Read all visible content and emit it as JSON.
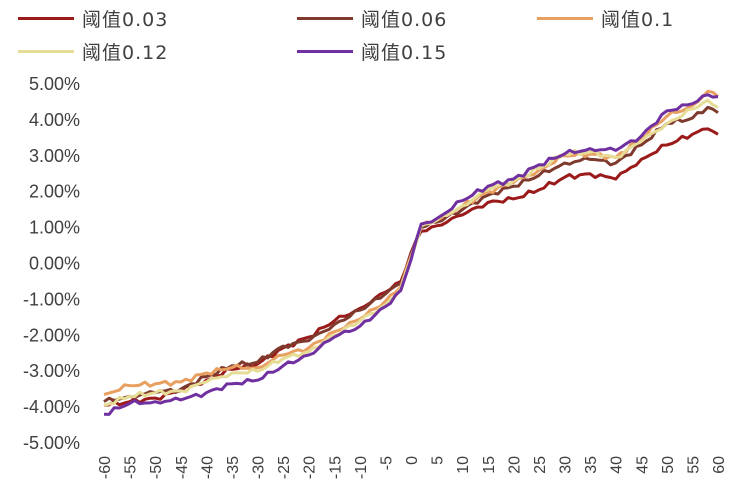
{
  "chart_data": {
    "type": "line",
    "title": "",
    "xlabel": "",
    "ylabel": "",
    "xlim": [
      -60,
      60
    ],
    "ylim": [
      -5,
      5
    ],
    "x_ticks": [
      -60,
      -55,
      -50,
      -45,
      -40,
      -35,
      -30,
      -25,
      -20,
      -15,
      -10,
      -5,
      0,
      5,
      10,
      15,
      20,
      25,
      30,
      35,
      40,
      45,
      50,
      55,
      60
    ],
    "x_tick_labels": [
      "-60",
      "-55",
      "-50",
      "-45",
      "-40",
      "-35",
      "-30",
      "-25",
      "-20",
      "-15",
      "-10",
      "-5",
      "0",
      "5",
      "10",
      "15",
      "20",
      "25",
      "30",
      "35",
      "40",
      "45",
      "50",
      "55",
      "60"
    ],
    "y_ticks": [
      5,
      4,
      3,
      2,
      1,
      0,
      -1,
      -2,
      -3,
      -4,
      -5
    ],
    "y_tick_labels": [
      "5.00%",
      "4.00%",
      "3.00%",
      "2.00%",
      "1.00%",
      "0.00%",
      "-1.00%",
      "-2.00%",
      "-3.00%",
      "-4.00%",
      "-5.00%"
    ],
    "grid": false,
    "legend_position": "top",
    "x": [
      -60,
      -55,
      -50,
      -45,
      -40,
      -35,
      -30,
      -25,
      -20,
      -15,
      -10,
      -5,
      -2,
      0,
      2,
      5,
      10,
      15,
      20,
      25,
      30,
      35,
      40,
      45,
      50,
      55,
      58,
      60
    ],
    "series": [
      {
        "name": "阈值0.03",
        "color": "#9b1b1b",
        "values": [
          -3.95,
          -3.85,
          -3.75,
          -3.55,
          -3.25,
          -2.95,
          -2.8,
          -2.35,
          -2.05,
          -1.6,
          -1.25,
          -0.8,
          -0.5,
          0.3,
          0.9,
          1.05,
          1.35,
          1.7,
          1.8,
          2.05,
          2.4,
          2.5,
          2.35,
          2.9,
          3.3,
          3.6,
          3.75,
          3.6
        ]
      },
      {
        "name": "阈值0.06",
        "color": "#7f3a2e",
        "values": [
          -3.85,
          -3.7,
          -3.6,
          -3.5,
          -3.15,
          -2.85,
          -2.75,
          -2.3,
          -2.15,
          -1.7,
          -1.3,
          -0.85,
          -0.55,
          0.25,
          1.0,
          1.15,
          1.5,
          1.9,
          2.15,
          2.45,
          2.8,
          2.9,
          2.8,
          3.3,
          3.9,
          4.05,
          4.35,
          4.2
        ]
      },
      {
        "name": "阈值0.1",
        "color": "#e8a060",
        "values": [
          -3.65,
          -3.4,
          -3.35,
          -3.3,
          -3.05,
          -2.9,
          -2.9,
          -2.55,
          -2.35,
          -1.9,
          -1.55,
          -1.05,
          -0.65,
          0.2,
          1.05,
          1.2,
          1.6,
          2.0,
          2.25,
          2.6,
          3.0,
          3.05,
          2.95,
          3.5,
          4.1,
          4.4,
          4.8,
          4.65
        ]
      },
      {
        "name": "阈值0.12",
        "color": "#e6dc96",
        "values": [
          -3.95,
          -3.7,
          -3.6,
          -3.55,
          -3.3,
          -3.05,
          -3.0,
          -2.65,
          -2.45,
          -2.0,
          -1.6,
          -1.15,
          -0.7,
          0.15,
          1.05,
          1.2,
          1.6,
          2.05,
          2.3,
          2.65,
          3.05,
          3.1,
          2.95,
          3.4,
          3.9,
          4.3,
          4.55,
          4.35
        ]
      },
      {
        "name": "阈值0.15",
        "color": "#7030a0",
        "values": [
          -4.2,
          -3.9,
          -3.85,
          -3.8,
          -3.6,
          -3.35,
          -3.25,
          -2.85,
          -2.55,
          -2.05,
          -1.75,
          -1.2,
          -0.75,
          0.1,
          1.1,
          1.25,
          1.75,
          2.15,
          2.35,
          2.75,
          3.05,
          3.2,
          3.15,
          3.55,
          4.25,
          4.45,
          4.7,
          4.65
        ]
      }
    ]
  }
}
